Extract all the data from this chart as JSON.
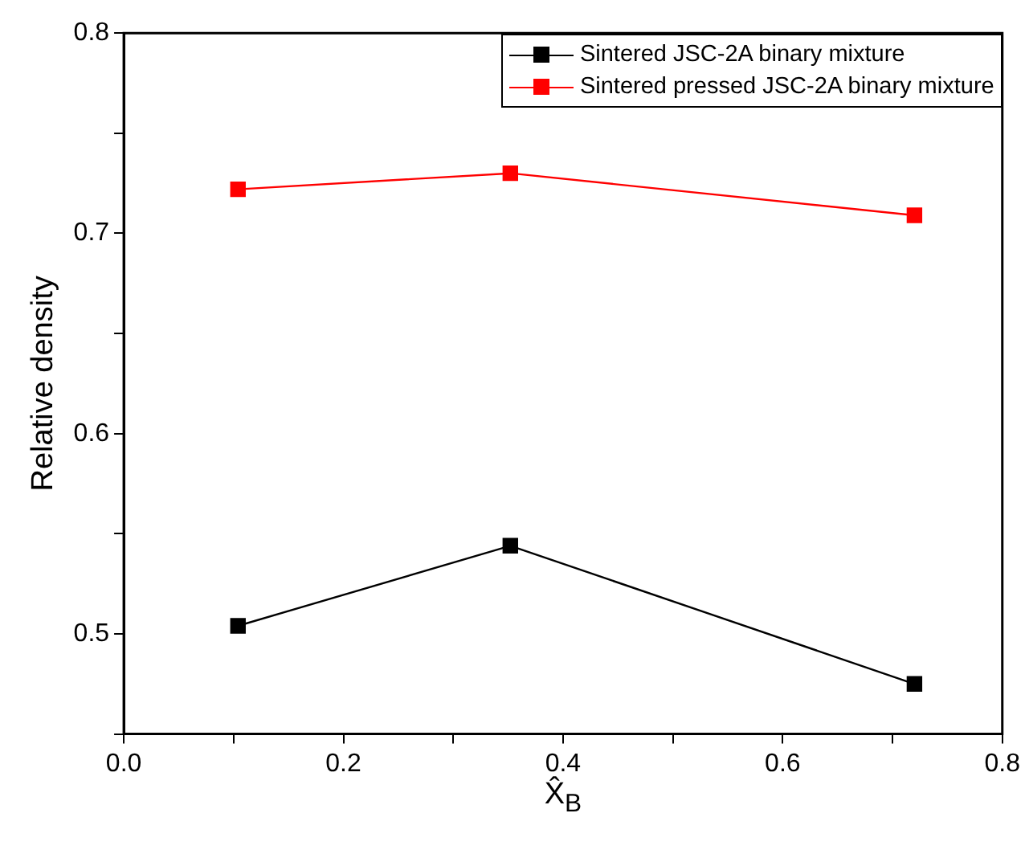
{
  "chart_data": {
    "type": "line",
    "xlabel": "X̂$_{B}$",
    "ylabel": "Relative density",
    "x": [
      0.104,
      0.352,
      0.72
    ],
    "series": [
      {
        "name": "Sintered JSC-2A binary mixture",
        "color": "#000000",
        "values": [
          0.504,
          0.544,
          0.475
        ]
      },
      {
        "name": "Sintered pressed JSC-2A binary mixture",
        "color": "#ff0000",
        "values": [
          0.722,
          0.73,
          0.709
        ]
      }
    ],
    "xlim": [
      0,
      0.8
    ],
    "xticks": [
      {
        "value": 0,
        "label": "0.0"
      },
      {
        "value": 0.1,
        "label": null
      },
      {
        "value": 0.2,
        "label": "0.2"
      },
      {
        "value": 0.3,
        "label": null
      },
      {
        "value": 0.4,
        "label": "0.4"
      },
      {
        "value": 0.5,
        "label": null
      },
      {
        "value": 0.6,
        "label": "0.6"
      },
      {
        "value": 0.7,
        "label": null
      },
      {
        "value": 0.8,
        "label": "0.8"
      }
    ],
    "ylim": [
      0.45,
      0.8
    ],
    "yticks": [
      {
        "value": 0.45,
        "label": null
      },
      0.5,
      {
        "value": 0.55,
        "label": null
      },
      0.6,
      {
        "value": 0.65,
        "label": null
      },
      0.7,
      {
        "value": 0.75,
        "label": null
      },
      0.8
    ],
    "grid": false,
    "legend": "top right",
    "marker": "square",
    "line_style": "solid"
  }
}
